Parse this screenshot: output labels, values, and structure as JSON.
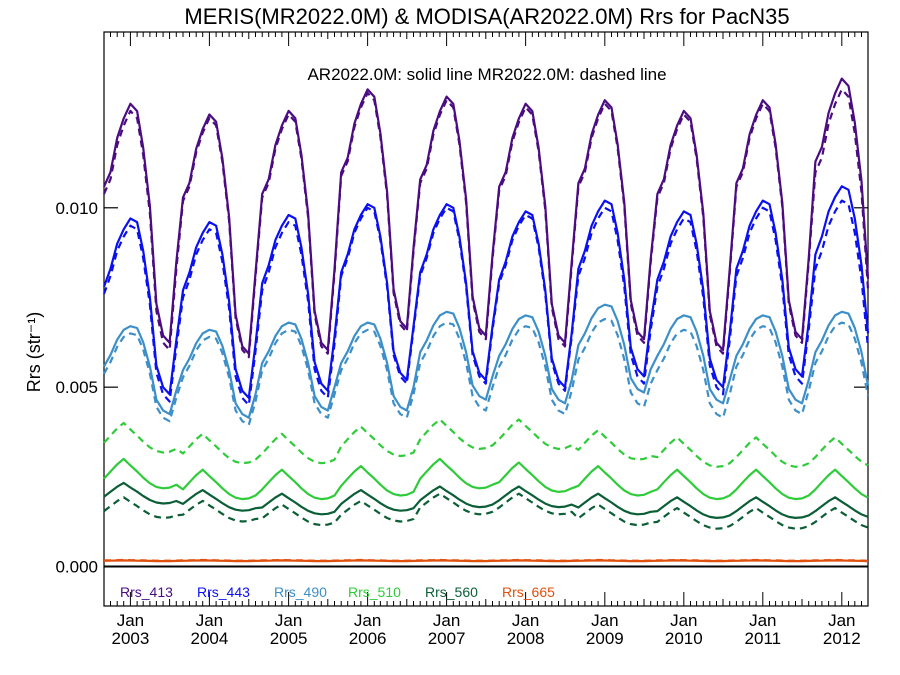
{
  "chart_data": {
    "type": "line",
    "title": "MERIS(MR2022.0M) & MODISA(AR2022.0M)  Rrs for PacN35",
    "subtitle": "AR2022.0M: solid line   MR2022.0M: dashed line",
    "ylabel": "Rrs (str⁻¹)",
    "xlabel": "",
    "ylim": [
      -0.0011,
      0.0149
    ],
    "xlim": [
      "2002-09-01",
      "2012-05-01"
    ],
    "grid": false,
    "legend_position": "bottom-left",
    "y_ticks": [
      {
        "value": 0.0,
        "label": "0.000"
      },
      {
        "value": 0.005,
        "label": "0.005"
      },
      {
        "value": 0.01,
        "label": "0.010"
      }
    ],
    "x_ticks": [
      {
        "value": "2003-01-01",
        "month": "Jan",
        "year": "2003"
      },
      {
        "value": "2004-01-01",
        "month": "Jan",
        "year": "2004"
      },
      {
        "value": "2005-01-01",
        "month": "Jan",
        "year": "2005"
      },
      {
        "value": "2006-01-01",
        "month": "Jan",
        "year": "2006"
      },
      {
        "value": "2007-01-01",
        "month": "Jan",
        "year": "2007"
      },
      {
        "value": "2008-01-01",
        "month": "Jan",
        "year": "2008"
      },
      {
        "value": "2009-01-01",
        "month": "Jan",
        "year": "2009"
      },
      {
        "value": "2010-01-01",
        "month": "Jan",
        "year": "2010"
      },
      {
        "value": "2011-01-01",
        "month": "Jan",
        "year": "2011"
      },
      {
        "value": "2012-01-01",
        "month": "Jan",
        "year": "2012"
      }
    ],
    "series": [
      {
        "name": "Rrs_413",
        "color": "#4b0c82",
        "sensor": "AR2022.0M",
        "style": "solid",
        "x": [
          "2002-09",
          "2003-09",
          "2004-09",
          "2005-09",
          "2006-09",
          "2007-09",
          "2008-09",
          "2009-09",
          "2010-09",
          "2011-09"
        ],
        "values": [
          0.0129,
          0.0126,
          0.0127,
          0.0133,
          0.0131,
          0.0129,
          0.013,
          0.0127,
          0.013,
          0.0136
        ]
      },
      {
        "name": "Rrs_413",
        "color": "#4b0c82",
        "sensor": "MR2022.0M",
        "style": "dashed",
        "x": [
          "2002-09",
          "2003-09",
          "2004-09",
          "2005-09",
          "2006-09",
          "2007-09",
          "2008-09",
          "2009-09",
          "2010-09",
          "2011-09"
        ],
        "values": [
          0.0127,
          0.0125,
          0.0126,
          0.0132,
          0.013,
          0.0128,
          0.0129,
          0.0126,
          0.0129,
          0.0133
        ]
      },
      {
        "name": "Rrs_443",
        "color": "#0a10f0",
        "sensor": "AR2022.0M",
        "style": "solid",
        "x": [
          "2002-09",
          "2003-09",
          "2004-09",
          "2005-09",
          "2006-09",
          "2007-09",
          "2008-09",
          "2009-09",
          "2010-09",
          "2011-09"
        ],
        "values": [
          0.0097,
          0.0096,
          0.0098,
          0.0101,
          0.0101,
          0.0099,
          0.0102,
          0.0099,
          0.0102,
          0.0106
        ]
      },
      {
        "name": "Rrs_443",
        "color": "#0a10f0",
        "sensor": "MR2022.0M",
        "style": "dashed",
        "x": [
          "2002-09",
          "2003-09",
          "2004-09",
          "2005-09",
          "2006-09",
          "2007-09",
          "2008-09",
          "2009-09",
          "2010-09",
          "2011-09"
        ],
        "values": [
          0.0095,
          0.0094,
          0.0096,
          0.01,
          0.01,
          0.0098,
          0.01,
          0.0097,
          0.01,
          0.0102
        ]
      },
      {
        "name": "Rrs_490",
        "color": "#3c8fc8",
        "sensor": "AR2022.0M",
        "style": "solid",
        "x": [
          "2002-09",
          "2003-09",
          "2004-09",
          "2005-09",
          "2006-09",
          "2007-09",
          "2008-09",
          "2009-09",
          "2010-09",
          "2011-09"
        ],
        "values": [
          0.0067,
          0.0066,
          0.0068,
          0.0068,
          0.0071,
          0.007,
          0.0073,
          0.007,
          0.007,
          0.0071
        ]
      },
      {
        "name": "Rrs_490",
        "color": "#3c8fc8",
        "sensor": "MR2022.0M",
        "style": "dashed",
        "x": [
          "2002-09",
          "2003-09",
          "2004-09",
          "2005-09",
          "2006-09",
          "2007-09",
          "2008-09",
          "2009-09",
          "2010-09",
          "2011-09"
        ],
        "values": [
          0.0065,
          0.0064,
          0.0066,
          0.0066,
          0.0068,
          0.0067,
          0.0069,
          0.0066,
          0.0067,
          0.0068
        ]
      },
      {
        "name": "Rrs_510",
        "color": "#2fcc3a",
        "sensor": "AR2022.0M",
        "style": "solid",
        "x": [
          "2002-09",
          "2003-09",
          "2004-09",
          "2005-09",
          "2006-09",
          "2007-09",
          "2008-09",
          "2009-09",
          "2010-09",
          "2011-09"
        ],
        "values": [
          0.0031,
          0.0028,
          0.0028,
          0.0029,
          0.0031,
          0.003,
          0.0029,
          0.0028,
          0.0028,
          0.0028
        ]
      },
      {
        "name": "Rrs_510",
        "color": "#2fcc3a",
        "sensor": "MR2022.0M",
        "style": "dashed",
        "x": [
          "2002-09",
          "2003-09",
          "2004-09",
          "2005-09",
          "2006-09",
          "2007-09",
          "2008-09",
          "2009-09",
          "2010-09",
          "2011-09"
        ],
        "values": [
          0.0041,
          0.0038,
          0.0038,
          0.004,
          0.0042,
          0.0042,
          0.0039,
          0.0037,
          0.0037,
          0.0037
        ]
      },
      {
        "name": "Rrs_560",
        "color": "#0b5e36",
        "sensor": "AR2022.0M",
        "style": "solid",
        "x": [
          "2002-09",
          "2003-09",
          "2004-09",
          "2005-09",
          "2006-09",
          "2007-09",
          "2008-09",
          "2009-09",
          "2010-09",
          "2011-09"
        ],
        "values": [
          0.0024,
          0.0022,
          0.0021,
          0.0022,
          0.0023,
          0.0023,
          0.0021,
          0.002,
          0.002,
          0.002
        ]
      },
      {
        "name": "Rrs_560",
        "color": "#0b5e36",
        "sensor": "MR2022.0M",
        "style": "dashed",
        "x": [
          "2002-09",
          "2003-09",
          "2004-09",
          "2005-09",
          "2006-09",
          "2007-09",
          "2008-09",
          "2009-09",
          "2010-09",
          "2011-09"
        ],
        "values": [
          0.002,
          0.0019,
          0.0018,
          0.0019,
          0.0021,
          0.0021,
          0.0018,
          0.0017,
          0.0017,
          0.0017
        ]
      },
      {
        "name": "Rrs_665",
        "color": "#e0500e",
        "sensor": "AR2022.0M",
        "style": "solid",
        "x": [
          "2002-09",
          "2003-09",
          "2004-09",
          "2005-09",
          "2006-09",
          "2007-09",
          "2008-09",
          "2009-09",
          "2010-09",
          "2011-09"
        ],
        "values": [
          0.00018,
          0.00018,
          0.00018,
          0.00018,
          0.00018,
          0.00018,
          0.00018,
          0.00018,
          0.00018,
          0.00018
        ]
      },
      {
        "name": "Rrs_665",
        "color": "#e0500e",
        "sensor": "MR2022.0M",
        "style": "dashed",
        "x": [
          "2002-09",
          "2003-09",
          "2004-09",
          "2005-09",
          "2006-09",
          "2007-09",
          "2008-09",
          "2009-09",
          "2010-09",
          "2011-09"
        ],
        "values": [
          0.00019,
          0.00019,
          0.00019,
          0.00019,
          0.00019,
          0.00019,
          0.00019,
          0.00019,
          0.00019,
          0.00019
        ]
      }
    ],
    "legend": [
      {
        "label": "Rrs_413",
        "color": "#4b0c82"
      },
      {
        "label": "Rrs_443",
        "color": "#0a10f0"
      },
      {
        "label": "Rrs_490",
        "color": "#3c8fc8"
      },
      {
        "label": "Rrs_510",
        "color": "#2fcc3a"
      },
      {
        "label": "Rrs_560",
        "color": "#0b5e36"
      },
      {
        "label": "Rrs_665",
        "color": "#e0500e"
      }
    ]
  }
}
